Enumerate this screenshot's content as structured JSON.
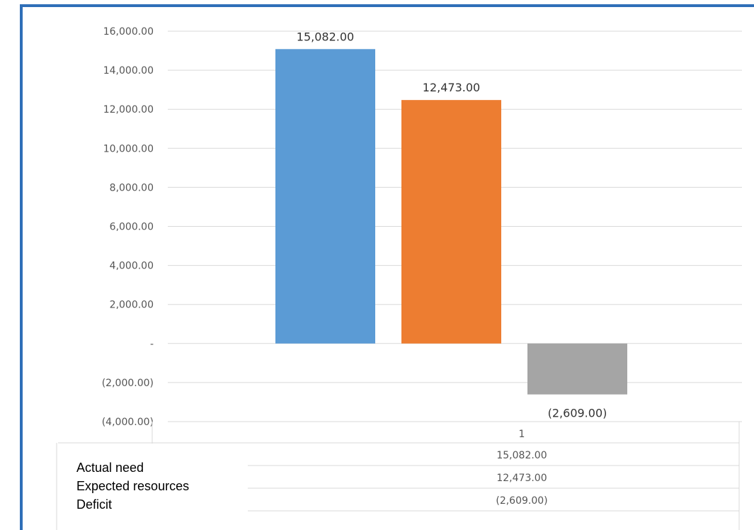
{
  "chart_data": {
    "type": "bar",
    "categories": [
      "1"
    ],
    "series": [
      {
        "name": "Actual need",
        "values": [
          15082
        ],
        "label": "15,082.00",
        "color": "#5b9bd5"
      },
      {
        "name": "Expected resources",
        "values": [
          12473
        ],
        "label": "12,473.00",
        "color": "#ed7d31"
      },
      {
        "name": "Deficit",
        "values": [
          -2609
        ],
        "label": "(2,609.00)",
        "color": "#a5a5a5"
      }
    ],
    "ylim": [
      -4000,
      16000
    ],
    "yticks": [
      16000,
      14000,
      12000,
      10000,
      8000,
      6000,
      4000,
      2000,
      0,
      -2000,
      -4000
    ],
    "ytick_labels": [
      "16,000.00",
      "14,000.00",
      "12,000.00",
      "10,000.00",
      "8,000.00",
      "6,000.00",
      "4,000.00",
      "2,000.00",
      "-",
      "(2,000.00)",
      "(4,000.00)"
    ],
    "grid": true,
    "legend": "data-table-bottom",
    "data_table": {
      "header": "1",
      "rows": [
        "15,082.00",
        "12,473.00",
        "(2,609.00)"
      ]
    }
  }
}
